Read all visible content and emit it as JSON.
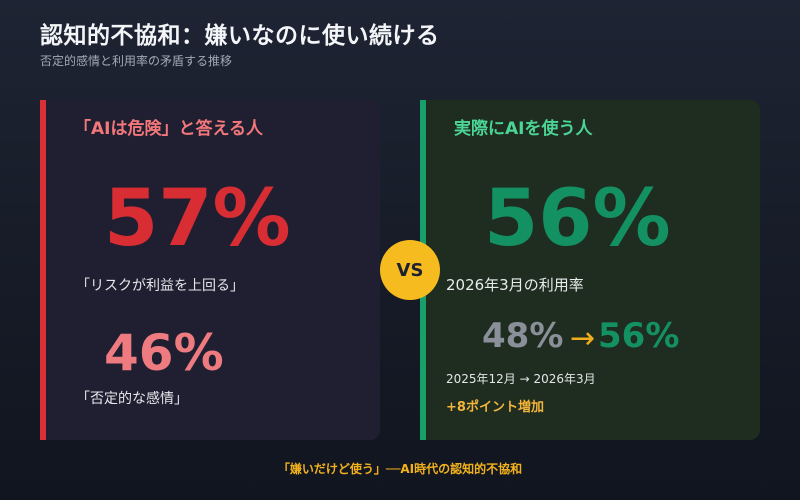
{
  "header": {
    "title": "認知的不協和：嫌いなのに使い続ける",
    "subtitle": "否定的感情と利用率の矛盾する推移"
  },
  "left_card": {
    "title": "「AIは危険」と答える人",
    "big_value": "57%",
    "big_caption": "「リスクが利益を上回る」",
    "mid_value": "46%",
    "mid_caption": "「否定的な感情」"
  },
  "vs_badge": "VS",
  "right_card": {
    "title": "実際にAIを使う人",
    "big_value": "56%",
    "big_caption": "2026年3月の利用率",
    "prev_value": "48%",
    "arrow": "→",
    "current_value": "56%",
    "period": "2025年12月 → 2026年3月",
    "points_change": "+8ポイント増加"
  },
  "footer": "「嫌いだけど使う」──AI時代の認知的不協和",
  "colors": {
    "danger": "#d92d34",
    "danger_light": "#ee7b80",
    "success": "#149162",
    "accent": "#f6bb1e"
  }
}
